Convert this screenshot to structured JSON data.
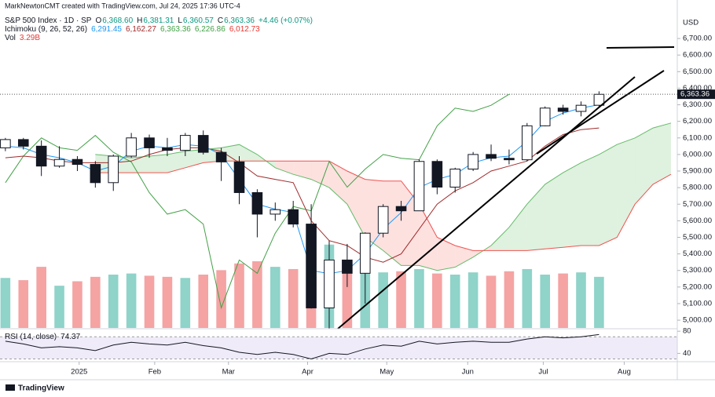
{
  "chart_data": {
    "type": "candlestick",
    "attribution": "MarkNewtonCMT created with TradingView.com, Jul 24, 2025 17:36 UTC-4",
    "title": "S&P 500 Index · 1D · SP",
    "ohlc_legend": [
      {
        "label": "O",
        "value": "6,368.60"
      },
      {
        "label": "H",
        "value": "6,381.31"
      },
      {
        "label": "L",
        "value": "6,360.57"
      },
      {
        "label": "C",
        "value": "6,363.36"
      }
    ],
    "change": "+4.46 (+0.07%)",
    "ichimoku_legend": {
      "name": "Ichimoku (9, 26, 52, 26)",
      "items": [
        {
          "value": "6,291.45",
          "color": "#2196f3"
        },
        {
          "value": "6,162.27",
          "color": "#a12b2b"
        },
        {
          "value": "6,363.36",
          "color": "#43a047"
        },
        {
          "value": "6,226.86",
          "color": "#43a047"
        },
        {
          "value": "6,012.73",
          "color": "#e53935"
        }
      ]
    },
    "volume_legend": {
      "name": "Vol",
      "value": "3.29B",
      "color": "#e53935"
    },
    "rsi_legend": {
      "name": "RSI (14, close)",
      "value": "74.37"
    },
    "currency": "USD",
    "brand": "TradingView",
    "last_price": {
      "value": 6363.36,
      "label": "6,363.36"
    },
    "xlim": [
      -0.3,
      37.35
    ],
    "xticks": [
      {
        "value": 4.1,
        "label": "2025"
      },
      {
        "value": 8.3,
        "label": "Feb"
      },
      {
        "value": 12.4,
        "label": "Mar"
      },
      {
        "value": 16.8,
        "label": "Apr"
      },
      {
        "value": 21.2,
        "label": "May"
      },
      {
        "value": 25.7,
        "label": "Jun"
      },
      {
        "value": 29.9,
        "label": "Jul"
      },
      {
        "value": 34.4,
        "label": "Aug"
      }
    ],
    "ylim": [
      4953,
      6866
    ],
    "yticks": [
      {
        "value": 5000,
        "label": "5,000.00"
      },
      {
        "value": 5100,
        "label": "5,100.00"
      },
      {
        "value": 5200,
        "label": "5,200.00"
      },
      {
        "value": 5300,
        "label": "5,300.00"
      },
      {
        "value": 5400,
        "label": "5,400.00"
      },
      {
        "value": 5500,
        "label": "5,500.00"
      },
      {
        "value": 5600,
        "label": "5,600.00"
      },
      {
        "value": 5700,
        "label": "5,700.00"
      },
      {
        "value": 5800,
        "label": "5,800.00"
      },
      {
        "value": 5900,
        "label": "5,900.00"
      },
      {
        "value": 6000,
        "label": "6,000.00"
      },
      {
        "value": 6100,
        "label": "6,100.00"
      },
      {
        "value": 6200,
        "label": "6,200.00"
      },
      {
        "value": 6300,
        "label": "6,300.00"
      },
      {
        "value": 6400,
        "label": "6,400.00"
      },
      {
        "value": 6500,
        "label": "6,500.00"
      },
      {
        "value": 6600,
        "label": "6,600.00"
      },
      {
        "value": 6700,
        "label": "6,700.00"
      }
    ],
    "x": [
      0,
      1,
      2,
      3,
      4,
      5,
      6,
      7,
      8,
      9,
      10,
      11,
      12,
      13,
      14,
      15,
      16,
      17,
      18,
      19,
      20,
      21,
      22,
      23,
      24,
      25,
      26,
      27,
      28,
      29,
      30,
      31,
      32,
      33
    ],
    "open": [
      6040,
      6090,
      6050,
      5930,
      5970,
      5940,
      5830,
      5990,
      6100,
      6040,
      6025,
      6115,
      6013,
      5955,
      5770,
      5640,
      5667,
      5580,
      5074,
      5363,
      5283,
      5525,
      5686,
      5660,
      5958,
      5803,
      5912,
      6000,
      5977,
      5968,
      6173,
      6280,
      6260,
      6297
    ],
    "high": [
      6100,
      6100,
      6085,
      6050,
      5990,
      5960,
      6000,
      6130,
      6120,
      6100,
      6130,
      6145,
      6040,
      5990,
      5790,
      5710,
      5720,
      5700,
      5480,
      5460,
      5530,
      5700,
      5720,
      5970,
      5970,
      5920,
      6015,
      6060,
      6030,
      6190,
      6290,
      6300,
      6320,
      6381
    ],
    "low": [
      6020,
      6030,
      5870,
      5920,
      5900,
      5800,
      5780,
      5980,
      5980,
      5990,
      5990,
      6000,
      5840,
      5700,
      5500,
      5600,
      5560,
      5070,
      4835,
      5200,
      5100,
      5500,
      5600,
      5660,
      5760,
      5770,
      5900,
      5960,
      5940,
      5960,
      6170,
      6240,
      6230,
      6290
    ],
    "close": [
      6090,
      6050,
      5930,
      5970,
      5940,
      5830,
      5990,
      6100,
      6040,
      6025,
      6115,
      6013,
      5955,
      5770,
      5640,
      5667,
      5580,
      5074,
      5363,
      5283,
      5525,
      5686,
      5660,
      5958,
      5803,
      5912,
      6000,
      5977,
      5968,
      6173,
      6280,
      6260,
      6297,
      6363
    ],
    "candle_colors": {
      "up": "#ffffff",
      "down": "#131722",
      "border": "#131722"
    },
    "volume": [
      4.5,
      4.3,
      5.5,
      3.8,
      4.2,
      4.6,
      4.8,
      4.9,
      4.7,
      4.6,
      4.5,
      4.8,
      5.2,
      5.8,
      6.0,
      5.5,
      5.3,
      8.5,
      7.5,
      6.0,
      5.5,
      5.0,
      5.1,
      5.3,
      4.9,
      4.8,
      5.0,
      4.7,
      5.1,
      5.3,
      4.8,
      4.9,
      5.0,
      4.6
    ],
    "volume_ylim": [
      0,
      12
    ],
    "volume_colors": {
      "up": "#8fd3c9",
      "down": "#f5a3a3"
    },
    "conversion": {
      "color": "#2196f3",
      "values": [
        6050,
        6040,
        6000,
        5980,
        5950,
        5900,
        5930,
        6020,
        6050,
        6040,
        6060,
        6050,
        6000,
        5850,
        5700,
        5670,
        5650,
        5300,
        5280,
        5300,
        5400,
        5550,
        5650,
        5800,
        5850,
        5880,
        5950,
        5980,
        5990,
        6080,
        6200,
        6250,
        6280,
        6300
      ]
    },
    "base": {
      "color": "#a12b2b",
      "values": [
        5980,
        5990,
        5980,
        5960,
        5950,
        5950,
        5950,
        5960,
        6000,
        6030,
        6040,
        6040,
        6020,
        5950,
        5870,
        5850,
        5830,
        5600,
        5480,
        5450,
        5380,
        5350,
        5400,
        5550,
        5700,
        5780,
        5830,
        5900,
        5930,
        5960,
        6050,
        6120,
        6150,
        6160
      ]
    },
    "lagging": {
      "color": "#43a047",
      "x": [
        0,
        1,
        2,
        3,
        4,
        5,
        6,
        7,
        8,
        9,
        10,
        11,
        12,
        13,
        14,
        15,
        16,
        17,
        18,
        19,
        20,
        21,
        22,
        23,
        24,
        25,
        26,
        27,
        28
      ],
      "values": [
        5830,
        5990,
        6100,
        6040,
        6025,
        6115,
        6013,
        5955,
        5770,
        5640,
        5667,
        5580,
        5074,
        5363,
        5283,
        5525,
        5686,
        5660,
        5958,
        5803,
        5912,
        6000,
        5977,
        5968,
        6173,
        6280,
        6260,
        6297,
        6363
      ]
    },
    "lead_a": {
      "color": "#66bb6a",
      "fill": "rgba(76,175,80,0.18)",
      "x": [
        5,
        6,
        7,
        8,
        9,
        10,
        11,
        12,
        13,
        14,
        15,
        16,
        17,
        18,
        19,
        20,
        21,
        22,
        23,
        24,
        25,
        26,
        27,
        28,
        29,
        30,
        31,
        32,
        33,
        34,
        35,
        36,
        37
      ],
      "values": [
        6000,
        5990,
        5980,
        5990,
        6000,
        6020,
        6030,
        6040,
        6060,
        6000,
        5920,
        5880,
        5850,
        5800,
        5700,
        5500,
        5420,
        5330,
        5330,
        5300,
        5320,
        5380,
        5450,
        5560,
        5700,
        5820,
        5890,
        5950,
        6000,
        6060,
        6100,
        6160,
        6190
      ]
    },
    "lead_b": {
      "color": "#ef5350",
      "fill": "rgba(244,67,54,0.16)",
      "x": [
        5,
        6,
        7,
        8,
        9,
        10,
        11,
        12,
        13,
        14,
        15,
        16,
        17,
        18,
        19,
        20,
        21,
        22,
        23,
        24,
        25,
        26,
        27,
        28,
        29,
        30,
        31,
        32,
        33,
        34,
        35,
        36,
        37
      ],
      "values": [
        5890,
        5890,
        5890,
        5890,
        5890,
        5920,
        5950,
        5960,
        5960,
        5960,
        5960,
        5960,
        5960,
        5960,
        5900,
        5850,
        5840,
        5840,
        5700,
        5500,
        5450,
        5420,
        5420,
        5420,
        5420,
        5430,
        5440,
        5450,
        5450,
        5500,
        5700,
        5820,
        5880
      ]
    },
    "rsi": {
      "color": "#131722",
      "band_color": "rgba(126,87,194,0.12)",
      "values": [
        62,
        57,
        50,
        52,
        50,
        45,
        55,
        60,
        57,
        55,
        60,
        54,
        50,
        42,
        38,
        42,
        38,
        30,
        40,
        38,
        48,
        55,
        53,
        62,
        57,
        60,
        62,
        60,
        60,
        66,
        70,
        68,
        70,
        74
      ],
      "ylim": [
        25,
        84.5
      ],
      "yticks": [
        80,
        40
      ],
      "band": [
        30,
        70
      ]
    }
  }
}
